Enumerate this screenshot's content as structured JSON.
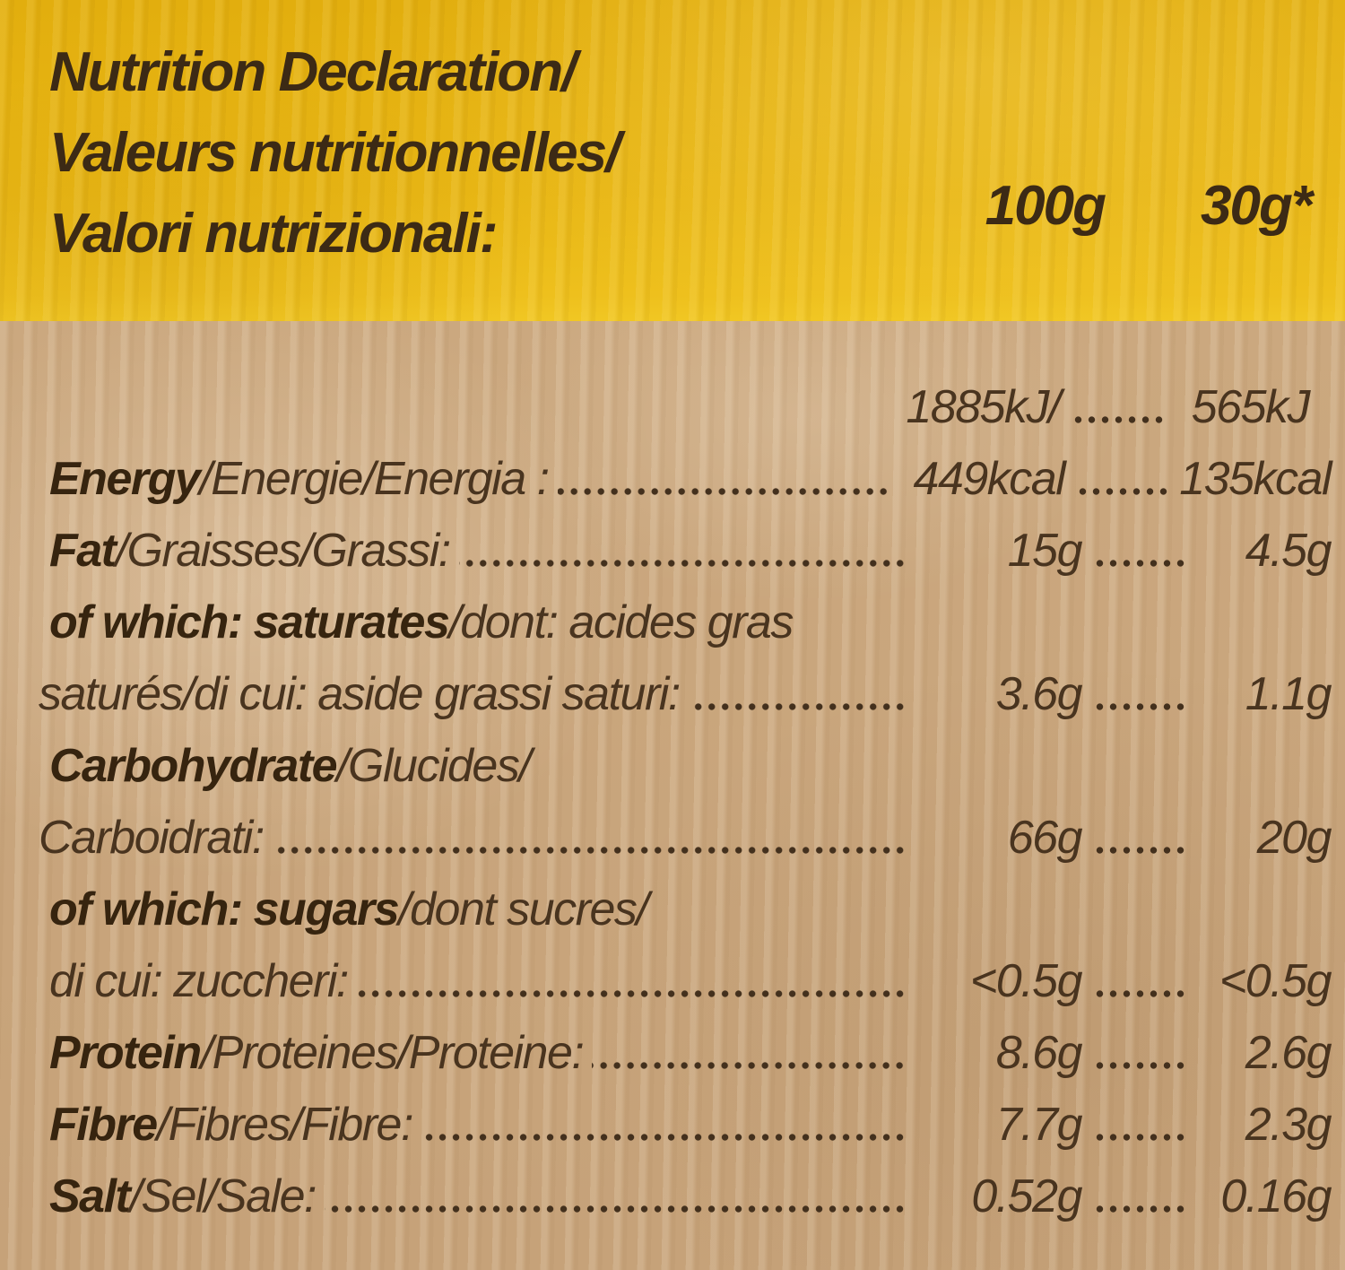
{
  "header": {
    "title_lines": [
      "Nutrition Declaration/",
      "Valeurs nutritionnelles/",
      "Valori nutrizionali:"
    ],
    "per_100g": "100g",
    "per_30g": "30g*"
  },
  "rows": [
    {
      "bold": "",
      "rest": "",
      "v100": "1885kJ/",
      "v30": "565kJ"
    },
    {
      "bold": "Energy",
      "rest": "/Energie/Energia :",
      "v100": "449kcal",
      "v30": "135kcal"
    },
    {
      "bold": "Fat",
      "rest": "/Graisses/Grassi:",
      "v100": "15g",
      "v30": "4.5g"
    },
    {
      "bold": "of which: saturates",
      "rest": "/dont: acides gras"
    },
    {
      "bold": "",
      "rest": "saturés/di cui: aside grassi saturi:",
      "v100": "3.6g",
      "v30": "1.1g"
    },
    {
      "bold": "Carbohydrate",
      "rest": "/Glucides/"
    },
    {
      "bold": "",
      "rest": "Carboidrati:",
      "v100": "66g",
      "v30": "20g"
    },
    {
      "bold": "of which: sugars",
      "rest": "/dont sucres/"
    },
    {
      "bold": "",
      "rest": "di cui: zuccheri:",
      "v100": "<0.5g",
      "v30": "<0.5g"
    },
    {
      "bold": "Protein",
      "rest": "/Proteines/Proteine:",
      "v100": "8.6g",
      "v30": "2.6g"
    },
    {
      "bold": "Fibre",
      "rest": "/Fibres/Fibre:",
      "v100": "7.7g",
      "v30": "2.3g"
    },
    {
      "bold": "Salt",
      "rest": "/Sel/Sale: ",
      "v100": "0.52g",
      "v30": "0.16g"
    }
  ],
  "colors": {
    "band_yellow": "#e7b514",
    "paper_tan": "#c8a57e",
    "ink_brown": "#3b2917"
  }
}
